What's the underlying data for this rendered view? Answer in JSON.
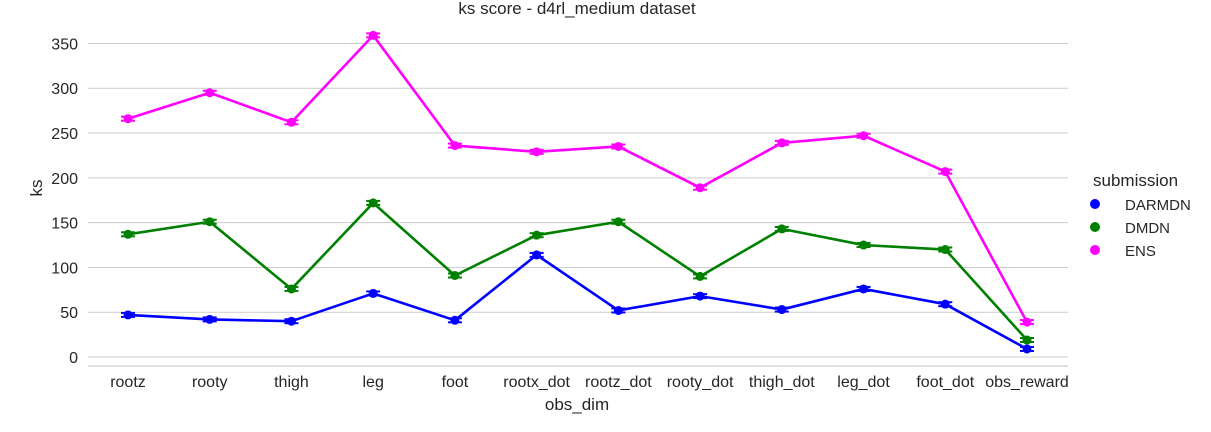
{
  "chart_data": {
    "type": "line",
    "title": "ks score - d4rl_medium dataset",
    "xlabel": "obs_dim",
    "ylabel": "ks",
    "categories": [
      "rootz",
      "rooty",
      "thigh",
      "leg",
      "foot",
      "rootx_dot",
      "rootz_dot",
      "rooty_dot",
      "thigh_dot",
      "leg_dot",
      "foot_dot",
      "obs_reward"
    ],
    "ylim": [
      -10,
      365
    ],
    "yticks": [
      0,
      50,
      100,
      150,
      200,
      250,
      300,
      350
    ],
    "grid": true,
    "legend_title": "submission",
    "legend_position": "right",
    "series": [
      {
        "name": "DARMDN",
        "color": "#0000ff",
        "values": [
          47,
          42,
          40,
          71,
          41,
          114,
          52,
          68,
          53,
          76,
          59,
          9
        ]
      },
      {
        "name": "DMDN",
        "color": "#008000",
        "values": [
          137,
          151,
          76,
          172,
          91,
          136,
          151,
          90,
          143,
          125,
          120,
          19
        ]
      },
      {
        "name": "ENS",
        "color": "#ff00ff",
        "values": [
          266,
          295,
          262,
          359,
          236,
          229,
          235,
          189,
          239,
          247,
          207,
          39
        ]
      }
    ]
  }
}
